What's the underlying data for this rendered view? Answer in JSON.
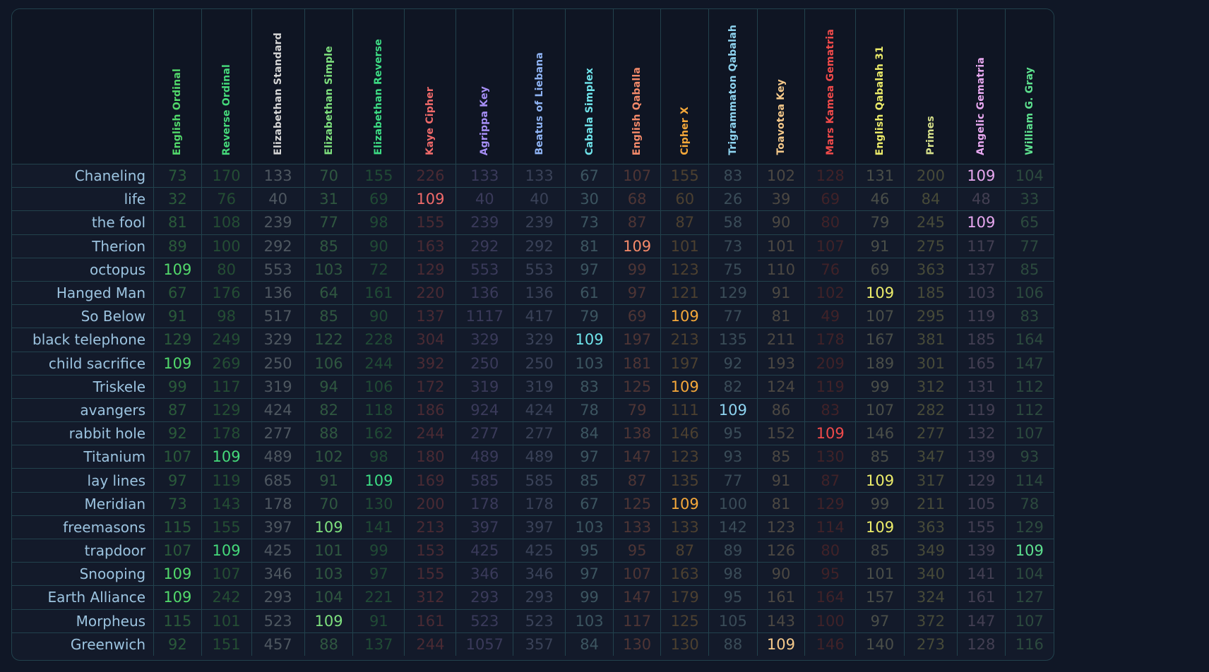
{
  "columns": [
    {
      "label": "English Ordinal",
      "color": "#52d96b",
      "dim": "#2a5a3a"
    },
    {
      "label": "Reverse Ordinal",
      "color": "#45d97a",
      "dim": "#244d34"
    },
    {
      "label": "Elizabethan Standard",
      "color": "#d6d6d6",
      "dim": "#4e5760"
    },
    {
      "label": "Elizabethan Simple",
      "color": "#7ee07e",
      "dim": "#2f5740"
    },
    {
      "label": "Elizabethan Reverse",
      "color": "#3ddc84",
      "dim": "#204a35"
    },
    {
      "label": "Kaye Cipher",
      "color": "#f06a6a",
      "dim": "#4a2a33"
    },
    {
      "label": "Agrippa Key",
      "color": "#a68ef5",
      "dim": "#3a3a5a"
    },
    {
      "label": "Beatus of Liebana",
      "color": "#8fb4f5",
      "dim": "#3a4258"
    },
    {
      "label": "Cabala Simplex",
      "color": "#6fe3ea",
      "dim": "#3c5560"
    },
    {
      "label": "English Qaballa",
      "color": "#f58a6a",
      "dim": "#4e3535"
    },
    {
      "label": "Cipher X",
      "color": "#f5a83a",
      "dim": "#4c4030"
    },
    {
      "label": "Trigrammaton Qabalah",
      "color": "#8ed4f0",
      "dim": "#3a4c58"
    },
    {
      "label": "Toavotea Key",
      "color": "#f5c98a",
      "dim": "#4c4842"
    },
    {
      "label": "Mars Kamea Gematria",
      "color": "#f04a4a",
      "dim": "#402228"
    },
    {
      "label": "English Qabalah 31",
      "color": "#ecec6a",
      "dim": "#4a4e48"
    },
    {
      "label": "Primes",
      "color": "#d6e08a",
      "dim": "#474a38"
    },
    {
      "label": "Angelic Gematria",
      "color": "#e8a8f0",
      "dim": "#433f52"
    },
    {
      "label": "William G. Gray",
      "color": "#5de08e",
      "dim": "#2c4a3e"
    }
  ],
  "rows": [
    {
      "label": "Chaneling",
      "values": [
        "73",
        "170",
        "133",
        "70",
        "155",
        "226",
        "133",
        "133",
        "67",
        "107",
        "155",
        "83",
        "102",
        "128",
        "131",
        "200",
        "109",
        "104"
      ]
    },
    {
      "label": "life",
      "values": [
        "32",
        "76",
        "40",
        "31",
        "69",
        "109",
        "40",
        "40",
        "30",
        "68",
        "60",
        "26",
        "39",
        "69",
        "46",
        "84",
        "48",
        "33"
      ]
    },
    {
      "label": "the fool",
      "values": [
        "81",
        "108",
        "239",
        "77",
        "98",
        "155",
        "239",
        "239",
        "73",
        "87",
        "87",
        "58",
        "90",
        "80",
        "79",
        "245",
        "109",
        "65"
      ]
    },
    {
      "label": "Therion",
      "values": [
        "89",
        "100",
        "292",
        "85",
        "90",
        "163",
        "292",
        "292",
        "81",
        "109",
        "101",
        "73",
        "101",
        "107",
        "91",
        "275",
        "117",
        "77"
      ]
    },
    {
      "label": "octopus",
      "values": [
        "109",
        "80",
        "553",
        "103",
        "72",
        "129",
        "553",
        "553",
        "97",
        "99",
        "123",
        "75",
        "110",
        "76",
        "69",
        "363",
        "137",
        "85"
      ]
    },
    {
      "label": "Hanged Man",
      "values": [
        "67",
        "176",
        "136",
        "64",
        "161",
        "220",
        "136",
        "136",
        "61",
        "97",
        "121",
        "129",
        "91",
        "102",
        "109",
        "185",
        "103",
        "106"
      ]
    },
    {
      "label": "So Below",
      "values": [
        "91",
        "98",
        "517",
        "85",
        "90",
        "137",
        "1117",
        "417",
        "79",
        "69",
        "109",
        "77",
        "81",
        "49",
        "107",
        "295",
        "119",
        "83"
      ]
    },
    {
      "label": "black telephone",
      "values": [
        "129",
        "249",
        "329",
        "122",
        "228",
        "304",
        "329",
        "329",
        "109",
        "197",
        "213",
        "135",
        "211",
        "178",
        "167",
        "381",
        "185",
        "164"
      ]
    },
    {
      "label": "child sacrifice",
      "values": [
        "109",
        "269",
        "250",
        "106",
        "244",
        "392",
        "250",
        "250",
        "103",
        "181",
        "197",
        "92",
        "193",
        "209",
        "189",
        "301",
        "165",
        "147"
      ]
    },
    {
      "label": "Triskele",
      "values": [
        "99",
        "117",
        "319",
        "94",
        "106",
        "172",
        "319",
        "319",
        "83",
        "125",
        "109",
        "82",
        "124",
        "119",
        "99",
        "312",
        "131",
        "112"
      ]
    },
    {
      "label": "avangers",
      "values": [
        "87",
        "129",
        "424",
        "82",
        "118",
        "186",
        "924",
        "424",
        "78",
        "79",
        "111",
        "109",
        "86",
        "83",
        "107",
        "282",
        "119",
        "112"
      ]
    },
    {
      "label": "rabbit hole",
      "values": [
        "92",
        "178",
        "277",
        "88",
        "162",
        "244",
        "277",
        "277",
        "84",
        "138",
        "146",
        "95",
        "152",
        "109",
        "146",
        "277",
        "132",
        "107"
      ]
    },
    {
      "label": "Titanium",
      "values": [
        "107",
        "109",
        "489",
        "102",
        "98",
        "180",
        "489",
        "489",
        "97",
        "147",
        "123",
        "93",
        "85",
        "130",
        "85",
        "347",
        "139",
        "93"
      ]
    },
    {
      "label": "lay lines",
      "values": [
        "97",
        "119",
        "685",
        "91",
        "109",
        "169",
        "585",
        "585",
        "85",
        "87",
        "135",
        "77",
        "91",
        "87",
        "109",
        "317",
        "129",
        "114"
      ]
    },
    {
      "label": "Meridian",
      "values": [
        "73",
        "143",
        "178",
        "70",
        "130",
        "200",
        "178",
        "178",
        "67",
        "125",
        "109",
        "100",
        "81",
        "129",
        "99",
        "211",
        "105",
        "78"
      ]
    },
    {
      "label": "freemasons",
      "values": [
        "115",
        "155",
        "397",
        "109",
        "141",
        "213",
        "397",
        "397",
        "103",
        "133",
        "133",
        "142",
        "123",
        "114",
        "109",
        "363",
        "155",
        "129"
      ]
    },
    {
      "label": "trapdoor",
      "values": [
        "107",
        "109",
        "425",
        "101",
        "99",
        "153",
        "425",
        "425",
        "95",
        "95",
        "87",
        "89",
        "126",
        "80",
        "85",
        "349",
        "139",
        "109"
      ]
    },
    {
      "label": "Snooping",
      "values": [
        "109",
        "107",
        "346",
        "103",
        "97",
        "155",
        "346",
        "346",
        "97",
        "107",
        "163",
        "98",
        "90",
        "95",
        "101",
        "340",
        "141",
        "104"
      ]
    },
    {
      "label": "Earth Alliance",
      "values": [
        "109",
        "242",
        "293",
        "104",
        "221",
        "312",
        "293",
        "293",
        "99",
        "147",
        "179",
        "95",
        "161",
        "164",
        "157",
        "324",
        "161",
        "127"
      ]
    },
    {
      "label": "Morpheus",
      "values": [
        "115",
        "101",
        "523",
        "109",
        "91",
        "161",
        "523",
        "523",
        "103",
        "117",
        "125",
        "105",
        "143",
        "100",
        "97",
        "372",
        "147",
        "107"
      ]
    },
    {
      "label": "Greenwich",
      "values": [
        "92",
        "151",
        "457",
        "88",
        "137",
        "244",
        "1057",
        "357",
        "84",
        "130",
        "130",
        "88",
        "109",
        "146",
        "140",
        "273",
        "128",
        "116"
      ]
    }
  ],
  "highlight_value": "109"
}
